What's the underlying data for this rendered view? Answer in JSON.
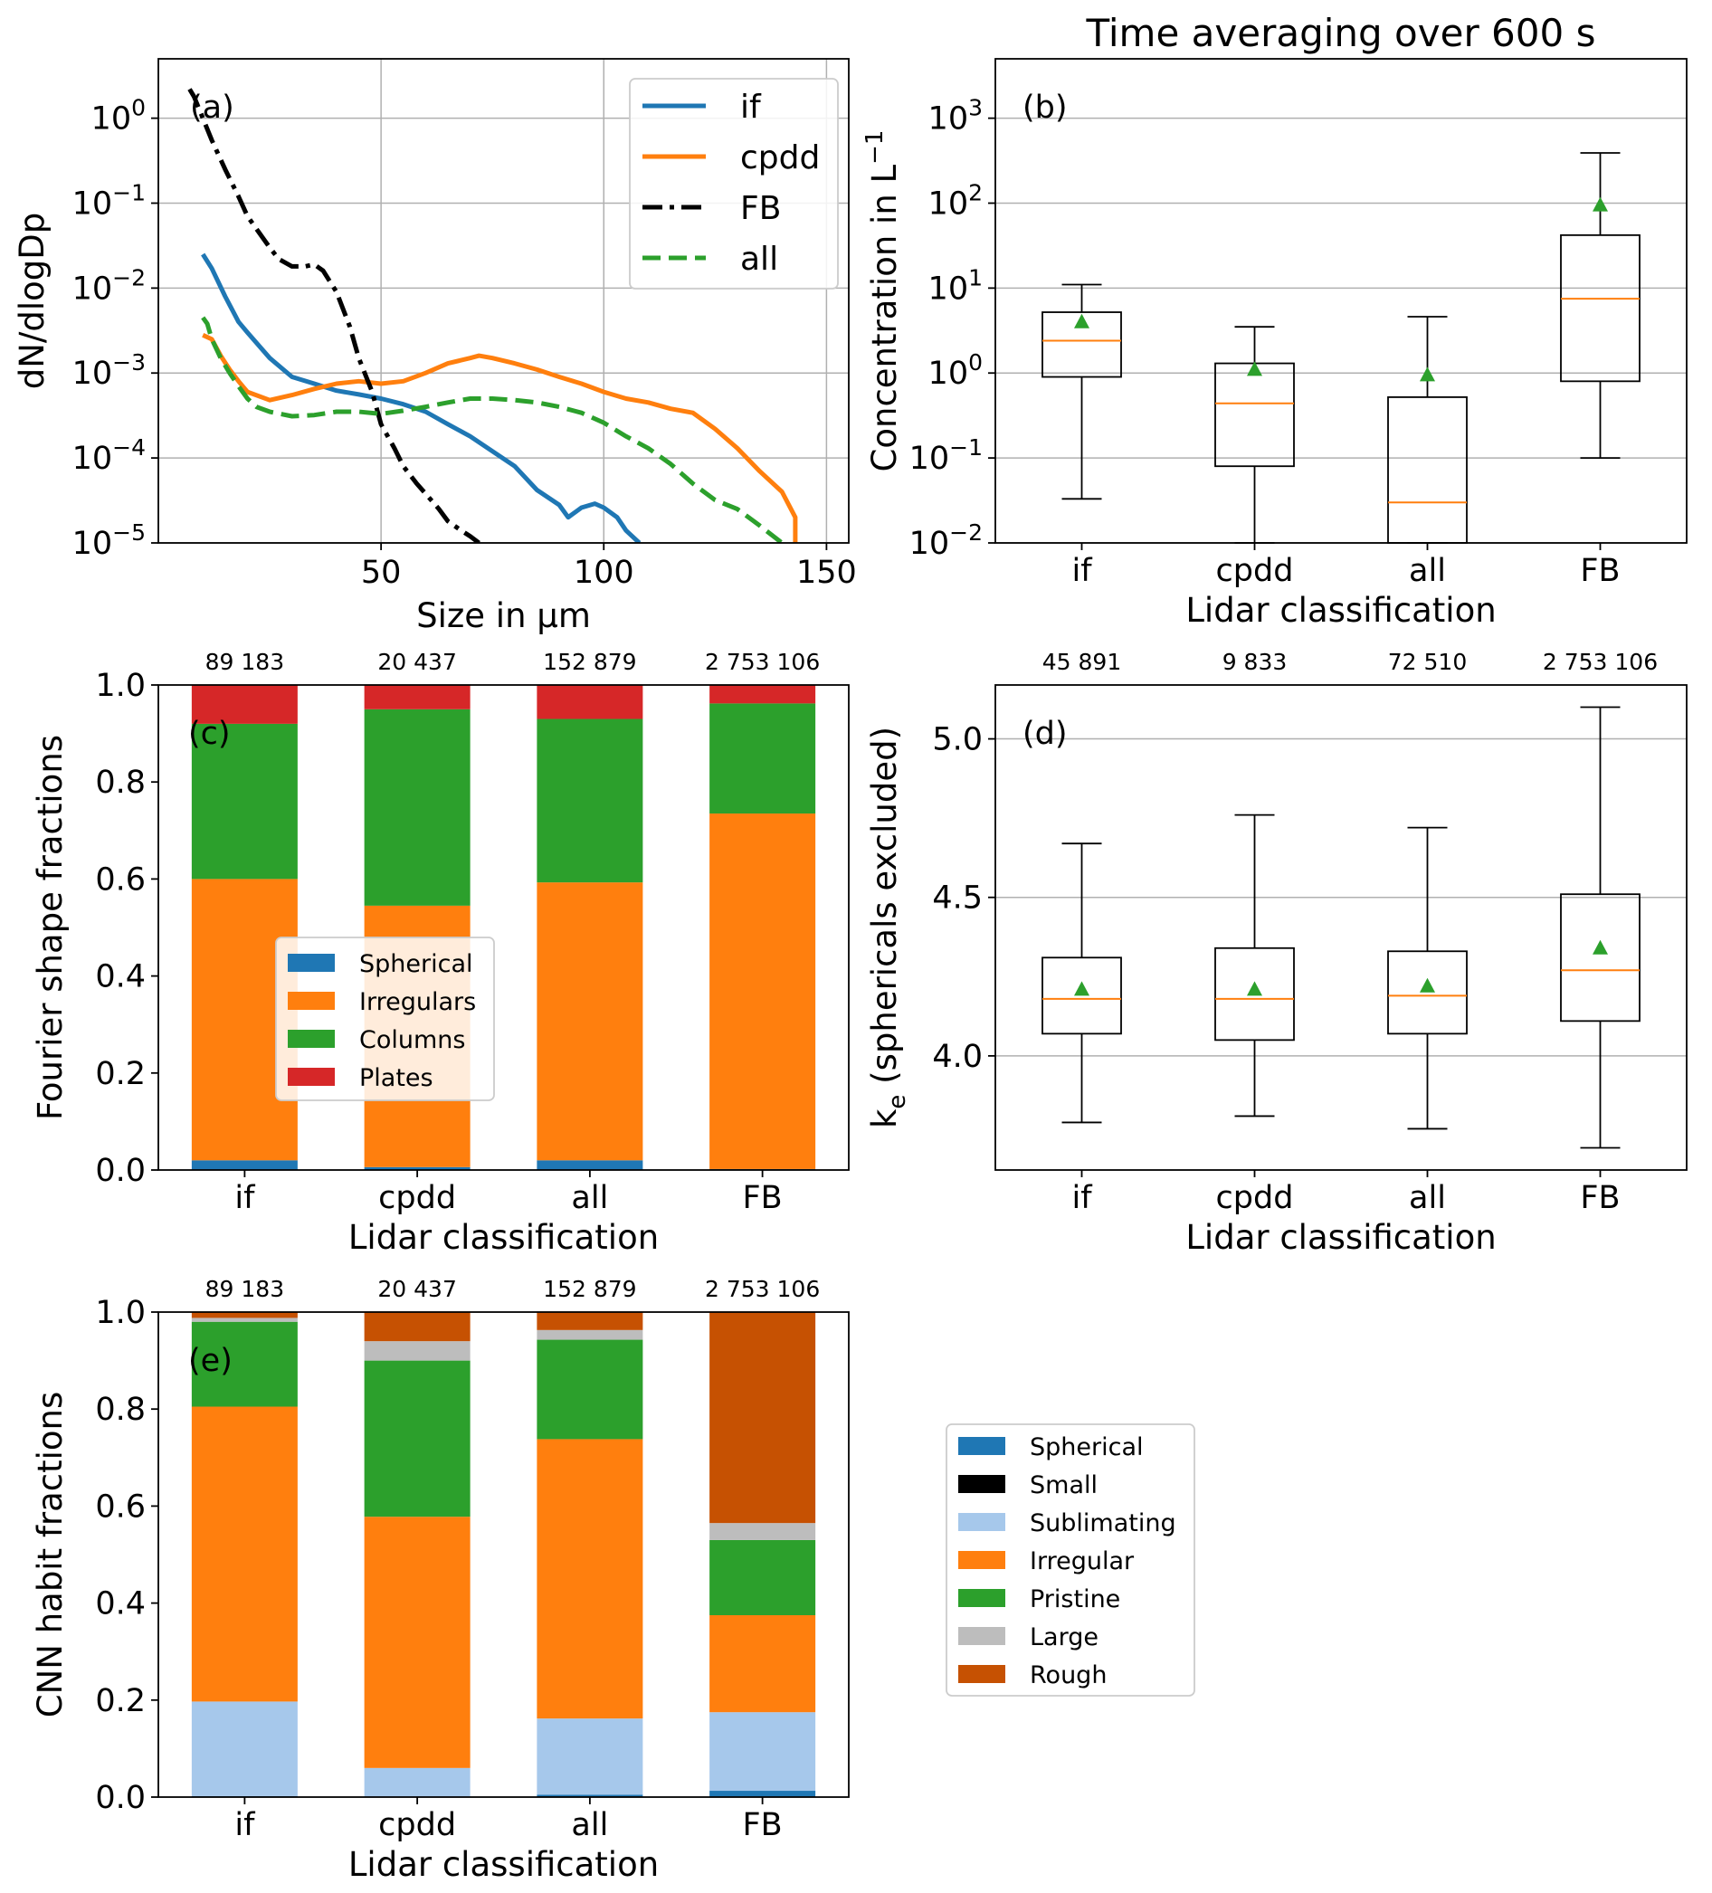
{
  "chart_data": [
    {
      "type": "line",
      "panel": "(a)",
      "xlabel": "Size in μm",
      "ylabel": "dN/dlogDp",
      "yscale": "log",
      "xlim": [
        0,
        155
      ],
      "ylim": [
        1e-05,
        5
      ],
      "xticks": [
        {
          "v": 50,
          "label": "50"
        },
        {
          "v": 100,
          "label": "100"
        },
        {
          "v": 150,
          "label": "150"
        }
      ],
      "yticks": [
        {
          "v": 1,
          "base": "10",
          "exp": "0"
        },
        {
          "v": 0.1,
          "base": "10",
          "exp": "−1"
        },
        {
          "v": 0.01,
          "base": "10",
          "exp": "−2"
        },
        {
          "v": 0.001,
          "base": "10",
          "exp": "−3"
        },
        {
          "v": 0.0001,
          "base": "10",
          "exp": "−4"
        },
        {
          "v": 1e-05,
          "base": "10",
          "exp": "−5"
        }
      ],
      "grid": true,
      "legend_position": "top-right",
      "series": [
        {
          "name": "if",
          "color": "#1f77b4",
          "style": "solid",
          "x": [
            10,
            12,
            15,
            18,
            20,
            25,
            30,
            35,
            40,
            45,
            50,
            55,
            60,
            65,
            70,
            75,
            80,
            85,
            90,
            92,
            95,
            98,
            100,
            103,
            105,
            108
          ],
          "y": [
            0.025,
            0.017,
            0.008,
            0.004,
            0.003,
            0.0015,
            0.0009,
            0.00075,
            0.00062,
            0.00056,
            0.0005,
            0.00043,
            0.00035,
            0.00025,
            0.00018,
            0.00012,
            8e-05,
            4.2e-05,
            2.8e-05,
            2e-05,
            2.6e-05,
            2.9e-05,
            2.6e-05,
            2e-05,
            1.4e-05,
            1e-05
          ]
        },
        {
          "name": "cpdd",
          "color": "#ff7f0e",
          "style": "solid",
          "x": [
            10,
            12,
            14,
            16,
            18,
            20,
            25,
            30,
            35,
            40,
            45,
            50,
            55,
            60,
            65,
            70,
            72,
            75,
            80,
            85,
            90,
            95,
            100,
            105,
            110,
            115,
            120,
            125,
            130,
            135,
            140,
            143,
            143
          ],
          "y": [
            0.0028,
            0.0025,
            0.0016,
            0.0011,
            0.0008,
            0.0006,
            0.00048,
            0.00055,
            0.00065,
            0.00075,
            0.0008,
            0.00075,
            0.0008,
            0.001,
            0.0013,
            0.0015,
            0.0016,
            0.0015,
            0.0013,
            0.0011,
            0.0009,
            0.00075,
            0.0006,
            0.0005,
            0.00045,
            0.00038,
            0.00034,
            0.00022,
            0.00013,
            7e-05,
            4e-05,
            2e-05,
            1e-05
          ]
        },
        {
          "name": "FB",
          "color": "#000000",
          "style": "dashdot",
          "x": [
            7,
            8,
            10,
            12,
            15,
            18,
            20,
            22,
            25,
            27,
            30,
            33,
            35,
            37,
            40,
            43,
            45,
            48,
            50,
            53,
            55,
            58,
            60,
            63,
            65,
            68,
            70,
            72
          ],
          "y": [
            2.2,
            1.8,
            1.0,
            0.55,
            0.25,
            0.12,
            0.07,
            0.05,
            0.03,
            0.022,
            0.018,
            0.018,
            0.019,
            0.016,
            0.009,
            0.0035,
            0.0015,
            0.0006,
            0.00025,
            0.00013,
            8e-05,
            5e-05,
            3.8e-05,
            2.5e-05,
            1.8e-05,
            1.4e-05,
            1.2e-05,
            1e-05
          ]
        },
        {
          "name": "all",
          "color": "#2ca02c",
          "style": "dashed",
          "x": [
            10,
            11,
            12,
            14,
            16,
            18,
            20,
            22,
            25,
            30,
            35,
            40,
            45,
            50,
            55,
            60,
            65,
            70,
            75,
            80,
            85,
            90,
            95,
            100,
            105,
            110,
            115,
            120,
            125,
            130,
            135,
            140
          ],
          "y": [
            0.0045,
            0.0038,
            0.0025,
            0.0015,
            0.001,
            0.0007,
            0.0005,
            0.0004,
            0.00035,
            0.00031,
            0.00032,
            0.00035,
            0.00035,
            0.00033,
            0.00036,
            0.0004,
            0.00045,
            0.0005,
            0.0005,
            0.00048,
            0.00045,
            0.0004,
            0.00034,
            0.00026,
            0.00018,
            0.00013,
            8.5e-05,
            5e-05,
            3.2e-05,
            2.5e-05,
            1.6e-05,
            1e-05
          ]
        }
      ]
    },
    {
      "type": "box",
      "panel": "(b)",
      "title": "Time averaging over 600 s",
      "xlabel": "Lidar classification",
      "ylabel": "Concentration in L",
      "ylabel_exp": "−1",
      "yscale": "log",
      "ylim": [
        0.01,
        5000
      ],
      "yticks": [
        {
          "v": 1000,
          "base": "10",
          "exp": "3"
        },
        {
          "v": 100,
          "base": "10",
          "exp": "2"
        },
        {
          "v": 10,
          "base": "10",
          "exp": "1"
        },
        {
          "v": 1,
          "base": "10",
          "exp": "0"
        },
        {
          "v": 0.1,
          "base": "10",
          "exp": "−1"
        },
        {
          "v": 0.01,
          "base": "10",
          "exp": "−2"
        }
      ],
      "categories": [
        "if",
        "cpdd",
        "all",
        "FB"
      ],
      "boxes": [
        {
          "whislo": 0.033,
          "q1": 0.9,
          "med": 2.4,
          "q3": 5.2,
          "whishi": 11,
          "mean": 4.0
        },
        {
          "whislo": 0.01,
          "q1": 0.08,
          "med": 0.44,
          "q3": 1.3,
          "whishi": 3.5,
          "mean": 1.1
        },
        {
          "whislo": 0.01,
          "q1": 0.01,
          "med": 0.03,
          "q3": 0.52,
          "whishi": 4.6,
          "mean": 0.95
        },
        {
          "whislo": 0.1,
          "q1": 0.8,
          "med": 7.5,
          "q3": 42,
          "whishi": 390,
          "mean": 95
        }
      ],
      "grid": true
    },
    {
      "type": "bar",
      "stacked": true,
      "panel": "(c)",
      "xlabel": "Lidar classification",
      "ylabel": "Fourier shape fractions",
      "ylim": [
        0,
        1
      ],
      "yticks": [
        "0.0",
        "0.2",
        "0.4",
        "0.6",
        "0.8",
        "1.0"
      ],
      "categories": [
        "if",
        "cpdd",
        "all",
        "FB"
      ],
      "counts": [
        "89 183",
        "20 437",
        "152 879",
        "2 753 106"
      ],
      "legend_position": "center-left",
      "series": [
        {
          "name": "Spherical",
          "color": "#1f77b4",
          "values": [
            0.02,
            0.006,
            0.02,
            0.002
          ]
        },
        {
          "name": "Irregulars",
          "color": "#ff7f0e",
          "values": [
            0.58,
            0.539,
            0.573,
            0.733
          ]
        },
        {
          "name": "Columns",
          "color": "#2ca02c",
          "values": [
            0.32,
            0.405,
            0.337,
            0.227
          ]
        },
        {
          "name": "Plates",
          "color": "#d62728",
          "values": [
            0.08,
            0.05,
            0.07,
            0.038
          ]
        }
      ]
    },
    {
      "type": "box",
      "panel": "(d)",
      "xlabel": "Lidar classification",
      "ylabel": "k",
      "ylabel_sub": "e",
      "ylabel_rest": " (sphericals excluded)",
      "ylim": [
        3.64,
        5.17
      ],
      "yticks": [
        {
          "v": 4.0,
          "label": "4.0"
        },
        {
          "v": 4.5,
          "label": "4.5"
        },
        {
          "v": 5.0,
          "label": "5.0"
        }
      ],
      "categories": [
        "if",
        "cpdd",
        "all",
        "FB"
      ],
      "counts": [
        "45 891",
        "9 833",
        "72 510",
        "2 753 106"
      ],
      "boxes": [
        {
          "whislo": 3.79,
          "q1": 4.07,
          "med": 4.18,
          "q3": 4.31,
          "whishi": 4.67,
          "mean": 4.21
        },
        {
          "whislo": 3.81,
          "q1": 4.05,
          "med": 4.18,
          "q3": 4.34,
          "whishi": 4.76,
          "mean": 4.21
        },
        {
          "whislo": 3.77,
          "q1": 4.07,
          "med": 4.19,
          "q3": 4.33,
          "whishi": 4.72,
          "mean": 4.22
        },
        {
          "whislo": 3.71,
          "q1": 4.11,
          "med": 4.27,
          "q3": 4.51,
          "whishi": 5.1,
          "mean": 4.34
        }
      ],
      "grid": true
    },
    {
      "type": "bar",
      "stacked": true,
      "panel": "(e)",
      "xlabel": "Lidar classification",
      "ylabel": "CNN habit fractions",
      "ylim": [
        0,
        1
      ],
      "yticks": [
        "0.0",
        "0.2",
        "0.4",
        "0.6",
        "0.8",
        "1.0"
      ],
      "categories": [
        "if",
        "cpdd",
        "all",
        "FB"
      ],
      "counts": [
        "89 183",
        "20 437",
        "152 879",
        "2 753 106"
      ],
      "legend_position": "outside-right",
      "series": [
        {
          "name": "Spherical",
          "color": "#1f77b4",
          "values": [
            0.002,
            0.001,
            0.005,
            0.013
          ]
        },
        {
          "name": "Small",
          "color": "#000000",
          "values": [
            0.0,
            0.0,
            0.0,
            0.0
          ]
        },
        {
          "name": "Sublimating",
          "color": "#a6c8eb",
          "values": [
            0.195,
            0.059,
            0.157,
            0.162
          ]
        },
        {
          "name": "Irregular",
          "color": "#ff7f0e",
          "values": [
            0.608,
            0.518,
            0.576,
            0.2
          ]
        },
        {
          "name": "Pristine",
          "color": "#2ca02c",
          "values": [
            0.175,
            0.322,
            0.205,
            0.155
          ]
        },
        {
          "name": "Large",
          "color": "#bdbdbd",
          "values": [
            0.008,
            0.04,
            0.02,
            0.035
          ]
        },
        {
          "name": "Rough",
          "color": "#c65102",
          "values": [
            0.012,
            0.06,
            0.037,
            0.435
          ]
        }
      ]
    }
  ]
}
